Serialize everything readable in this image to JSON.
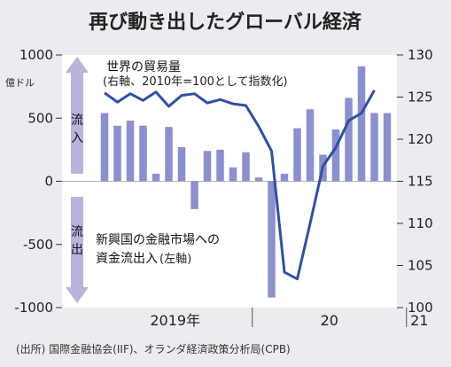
{
  "chart_data": {
    "type": "bar+line",
    "title": "再び動き出したグローバル経済",
    "left_axis": {
      "unit_label": "億ドル",
      "ticks": [
        1000,
        500,
        0,
        -500,
        -1000
      ],
      "tick_labels": [
        "1000",
        "500",
        "0",
        "-500",
        "-1000"
      ],
      "ylim": [
        -1000,
        1000
      ]
    },
    "right_axis": {
      "ticks": [
        130,
        125,
        120,
        115,
        110,
        105,
        100
      ],
      "tick_labels": [
        "130",
        "125",
        "120",
        "115",
        "110",
        "105",
        "100"
      ],
      "ylim": [
        100,
        130
      ]
    },
    "x_axis": {
      "labels": [
        {
          "text": "2019年",
          "month_index": 5.5
        },
        {
          "text": "20",
          "month_index": 17.5
        },
        {
          "text": "21",
          "month_index": 24.5
        }
      ],
      "dividers": [
        11.5,
        23.5
      ]
    },
    "arrows": {
      "inflow": "流入",
      "outflow": "流出"
    },
    "series": [
      {
        "name": "新興国の金融市場への資金流出入",
        "note": "(左軸)",
        "type": "bar",
        "axis": "left",
        "color": "#8c8fce",
        "values": [
          540,
          440,
          480,
          440,
          60,
          430,
          270,
          -220,
          240,
          250,
          110,
          230,
          30,
          -920,
          60,
          420,
          570,
          210,
          410,
          660,
          910,
          540,
          540
        ]
      },
      {
        "name": "世界の貿易量",
        "note": "(右軸、2010年=100として指数化)",
        "type": "line",
        "axis": "right",
        "color": "#2f4fa8",
        "values": [
          125.5,
          124.4,
          125.4,
          124.6,
          125.6,
          123.9,
          125.2,
          125.4,
          124.3,
          124.7,
          124.2,
          124.0,
          121.5,
          118.6,
          104.2,
          103.4,
          110.0,
          116.8,
          119.0,
          122.2,
          123.1,
          125.8
        ]
      }
    ]
  },
  "source": "(出所) 国際金融協会(IIF)、オランダ経済政策分析局(CPB)"
}
